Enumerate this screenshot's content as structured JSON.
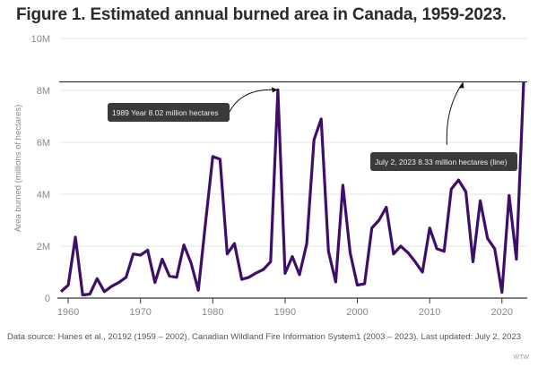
{
  "chart_data": {
    "type": "line",
    "title": "Figure 1. Estimated annual burned area in Canada, 1959-2023.",
    "xlabel": "",
    "ylabel": "Area burned (millions of hectares)",
    "xlim": [
      1959,
      2023
    ],
    "ylim": [
      0,
      10
    ],
    "grid": true,
    "x_ticks": [
      1960,
      1970,
      1980,
      1990,
      2000,
      2010,
      2020
    ],
    "x_tick_labels": [
      "1960",
      "1970",
      "1980",
      "1990",
      "2000",
      "2010",
      "2020"
    ],
    "y_ticks": [
      0,
      2,
      4,
      6,
      8,
      10
    ],
    "y_tick_labels": [
      "0",
      "2M",
      "4M",
      "6M",
      "8M",
      "10M"
    ],
    "series": [
      {
        "name": "Annual burned area",
        "color": "#3d0f6b",
        "x": [
          1959,
          1960,
          1961,
          1962,
          1963,
          1964,
          1965,
          1966,
          1967,
          1968,
          1969,
          1970,
          1971,
          1972,
          1973,
          1974,
          1975,
          1976,
          1977,
          1978,
          1979,
          1980,
          1981,
          1982,
          1983,
          1984,
          1985,
          1986,
          1987,
          1988,
          1989,
          1990,
          1991,
          1992,
          1993,
          1994,
          1995,
          1996,
          1997,
          1998,
          1999,
          2000,
          2001,
          2002,
          2003,
          2004,
          2005,
          2006,
          2007,
          2008,
          2009,
          2010,
          2011,
          2012,
          2013,
          2014,
          2015,
          2016,
          2017,
          2018,
          2019,
          2020,
          2021,
          2022,
          2023
        ],
        "values": [
          0.25,
          0.5,
          2.35,
          0.12,
          0.15,
          0.75,
          0.25,
          0.45,
          0.6,
          0.8,
          1.7,
          1.65,
          1.85,
          0.6,
          1.5,
          0.85,
          0.8,
          2.05,
          1.35,
          0.3,
          2.9,
          5.45,
          5.35,
          1.7,
          2.1,
          0.72,
          0.8,
          0.97,
          1.1,
          1.4,
          8.02,
          0.95,
          1.6,
          0.9,
          2.1,
          6.1,
          6.9,
          1.8,
          0.62,
          4.35,
          1.75,
          0.5,
          0.55,
          2.7,
          3.0,
          3.5,
          1.7,
          2.0,
          1.75,
          1.4,
          1.0,
          2.7,
          1.9,
          1.8,
          4.2,
          4.55,
          4.1,
          1.4,
          3.75,
          2.3,
          1.9,
          0.22,
          3.95,
          1.5,
          8.33
        ]
      }
    ],
    "reference_line": {
      "value": 8.33,
      "color": "#222222"
    },
    "annotations": [
      {
        "text": "1989 Year 8.02 million hectares",
        "x": 1989,
        "y": 8.02
      },
      {
        "text": "July 2, 2023 8.33 million hectares (line)",
        "x": 2014.5,
        "y": 8.33
      }
    ]
  },
  "footer": {
    "source": "Data source: Hanes et al., 20192 (1959 – 2002), Canadian Wildland Fire Information System1 (2003 – 2023). Last updated: July 2, 2023",
    "brand": "WTW"
  }
}
